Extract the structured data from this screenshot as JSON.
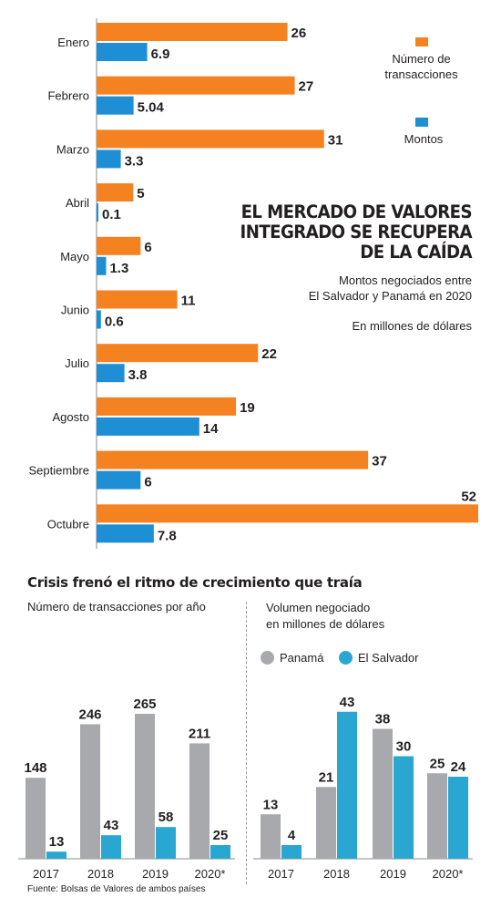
{
  "colors": {
    "orange": "#f58220",
    "blue": "#1e8fd5",
    "gray": "#a7a9ac",
    "teal": "#2aa6d3",
    "text": "#231f20"
  },
  "header": {
    "title": "EL MERCADO DE VALORES INTEGRADO SE RECUPERA DE LA CAÍDA",
    "subtitle_line1": "Montos negociados entre",
    "subtitle_line2": "El Salvador y Panamá en 2020",
    "units": "En millones de dólares"
  },
  "legend": {
    "transacciones_line1": "Número de",
    "transacciones_line2": "transacciones",
    "montos": "Montos"
  },
  "bottom": {
    "title": "Crisis frenó el ritmo de crecimiento que traía",
    "left_subtitle": "Número de transacciones por año",
    "right_subtitle_line1": "Volumen negociado",
    "right_subtitle_line2": "en millones de dólares",
    "legend_panama": "Panamá",
    "legend_salvador": "El Salvador"
  },
  "source": "Fuente: Bolsas de Valores de ambos países",
  "chart_data": [
    {
      "type": "bar",
      "orientation": "horizontal",
      "categories": [
        "Enero",
        "Febrero",
        "Marzo",
        "Abril",
        "Mayo",
        "Junio",
        "Julio",
        "Agosto",
        "Septiembre",
        "Octubre"
      ],
      "series": [
        {
          "name": "Número de transacciones",
          "values": [
            26,
            27,
            31,
            5,
            6,
            11,
            22,
            19,
            37,
            52
          ],
          "labels": [
            "26",
            "27",
            "31",
            "5",
            "6",
            "11",
            "22",
            "19",
            "37",
            "52"
          ]
        },
        {
          "name": "Montos",
          "values": [
            6.9,
            5.04,
            3.3,
            0.1,
            1.3,
            0.6,
            3.8,
            14,
            6,
            7.8
          ],
          "labels": [
            "6.9",
            "5.04",
            "3.3",
            "0.1",
            "1.3",
            "0.6",
            "3.8",
            "14",
            "6",
            "7.8"
          ]
        }
      ],
      "title": "EL MERCADO DE VALORES INTEGRADO SE RECUPERA DE LA CAÍDA",
      "legend": "top-right"
    },
    {
      "type": "bar",
      "categories": [
        "2017",
        "2018",
        "2019",
        "2020*"
      ],
      "series": [
        {
          "values": [
            148,
            246,
            265,
            211
          ],
          "labels": [
            "148",
            "246",
            "265",
            "211"
          ]
        },
        {
          "values": [
            13,
            43,
            58,
            25
          ],
          "labels": [
            "13",
            "43",
            "58",
            "25"
          ]
        }
      ],
      "title": "Número de transacciones por año"
    },
    {
      "type": "bar",
      "categories": [
        "2017",
        "2018",
        "2019",
        "2020*"
      ],
      "series": [
        {
          "name": "Panamá",
          "values": [
            13,
            21,
            38,
            25
          ],
          "labels": [
            "13",
            "21",
            "38",
            "25"
          ]
        },
        {
          "name": "El Salvador",
          "values": [
            4,
            43,
            30,
            24
          ],
          "labels": [
            "4",
            "43",
            "30",
            "24"
          ]
        }
      ],
      "title": "Volumen negociado en millones de dólares",
      "legend": "top-left"
    }
  ]
}
